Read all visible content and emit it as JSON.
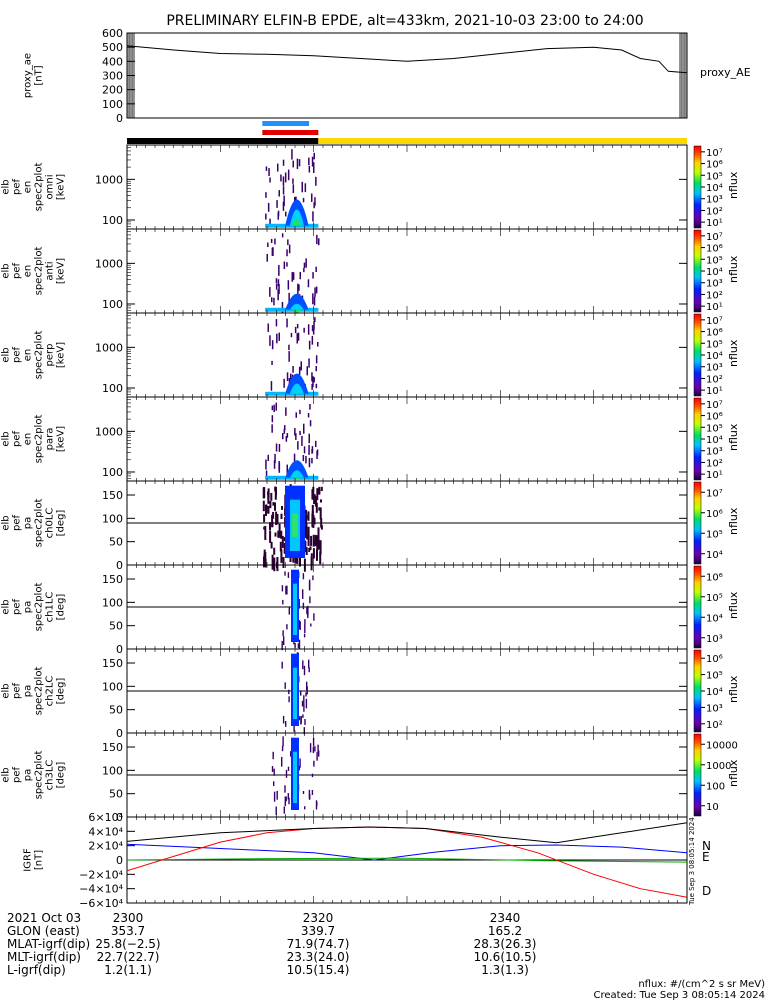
{
  "title": "PRELIMINARY ELFIN-B EPDE, alt=433km, 2021-10-03 23:00 to 24:00",
  "colors": {
    "ae_line": "#000000",
    "bar_blue": "#1e90ff",
    "bar_red": "#e00000",
    "bar_black": "#000000",
    "bar_yellow": "#ffd700",
    "grf_n": "#0000ff",
    "grf_e": "#00b000",
    "grf_d": "#ff0000",
    "grf_total": "#000000",
    "spec_fill": "#1e3cff"
  },
  "chart_data": [
    {
      "id": "proxy_ae",
      "type": "line",
      "ylabel_lines": [
        "proxy_ae",
        "[nT]"
      ],
      "legend": "proxy_AE",
      "ylim": [
        0,
        600
      ],
      "yticks": [
        "0",
        "100",
        "200",
        "300",
        "400",
        "500",
        "600"
      ],
      "x": [
        0,
        5,
        10,
        15,
        20,
        25,
        30,
        35,
        40,
        45,
        50,
        53,
        55,
        57,
        58,
        60
      ],
      "values": [
        510,
        480,
        455,
        450,
        440,
        420,
        400,
        420,
        455,
        490,
        500,
        480,
        420,
        400,
        330,
        320
      ]
    },
    {
      "id": "science_bars",
      "type": "bar",
      "segments": [
        {
          "color": "black",
          "x0": 0,
          "x1": 20.5
        },
        {
          "color": "yellow",
          "x0": 20.5,
          "x1": 60
        }
      ],
      "zones": [
        {
          "color": "blue",
          "x0": 14.5,
          "x1": 19.5
        },
        {
          "color": "red",
          "x0": 14.5,
          "x1": 20.5
        }
      ]
    },
    {
      "id": "omni",
      "type": "heatmap",
      "ylabel_lines": [
        "elb",
        "pef",
        "en",
        "spec2plot",
        "omni",
        "[keV]"
      ],
      "yscale": "log",
      "ylim": [
        60,
        7000
      ],
      "yticks": [
        "100",
        "1000"
      ],
      "cbar_label": "nflux",
      "cbar_ticks": [
        "10¹",
        "10²",
        "10³",
        "10⁴",
        "10⁵",
        "10⁶",
        "10⁷"
      ],
      "activity": {
        "x0": 14.8,
        "x1": 20.5,
        "peak_x": 18.2,
        "peak_value_keV": 800
      }
    },
    {
      "id": "anti",
      "type": "heatmap",
      "ylabel_lines": [
        "elb",
        "pef",
        "en",
        "spec2plot",
        "anti",
        "[keV]"
      ],
      "yscale": "log",
      "ylim": [
        60,
        7000
      ],
      "yticks": [
        "100",
        "1000"
      ],
      "cbar_label": "nflux",
      "cbar_ticks": [
        "10¹",
        "10²",
        "10³",
        "10⁴",
        "10⁵",
        "10⁶",
        "10⁷"
      ],
      "activity": {
        "x0": 14.8,
        "x1": 20.5,
        "peak_x": 18.2,
        "peak_value_keV": 250
      }
    },
    {
      "id": "perp",
      "type": "heatmap",
      "ylabel_lines": [
        "elb",
        "pef",
        "en",
        "spec2plot",
        "perp",
        "[keV]"
      ],
      "yscale": "log",
      "ylim": [
        60,
        7000
      ],
      "yticks": [
        "100",
        "1000"
      ],
      "cbar_label": "nflux",
      "cbar_ticks": [
        "10¹",
        "10²",
        "10³",
        "10⁴",
        "10⁵",
        "10⁶",
        "10⁷"
      ],
      "activity": {
        "x0": 14.8,
        "x1": 20.5,
        "peak_x": 18.2,
        "peak_value_keV": 400
      }
    },
    {
      "id": "para",
      "type": "heatmap",
      "ylabel_lines": [
        "elb",
        "pef",
        "en",
        "spec2plot",
        "para",
        "[keV]"
      ],
      "yscale": "log",
      "ylim": [
        60,
        7000
      ],
      "yticks": [
        "100",
        "1000"
      ],
      "cbar_label": "nflux",
      "cbar_ticks": [
        "10¹",
        "10²",
        "10³",
        "10⁴",
        "10⁵",
        "10⁶",
        "10⁷"
      ],
      "activity": {
        "x0": 14.8,
        "x1": 20.5,
        "peak_x": 18.2,
        "peak_value_keV": 300
      }
    },
    {
      "id": "ch0LC",
      "type": "heatmap",
      "ylabel_lines": [
        "elb",
        "pef",
        "pa",
        "spec2plot",
        "ch0LC",
        "[deg]"
      ],
      "yscale": "linear",
      "ylim": [
        0,
        180
      ],
      "yticks": [
        "0",
        "50",
        "100",
        "150"
      ],
      "ref_line": 90,
      "cbar_label": "nflux",
      "cbar_ticks": [
        "10⁴",
        "10⁵",
        "10⁶",
        "10⁷"
      ],
      "activity": {
        "x0": 14.5,
        "x1": 20.8,
        "peak_x": 18.0,
        "peak_value_deg": 90
      }
    },
    {
      "id": "ch1LC",
      "type": "heatmap",
      "ylabel_lines": [
        "elb",
        "pef",
        "pa",
        "spec2plot",
        "ch1LC",
        "[deg]"
      ],
      "yscale": "linear",
      "ylim": [
        0,
        180
      ],
      "yticks": [
        "0",
        "50",
        "100",
        "150"
      ],
      "ref_line": 90,
      "cbar_label": "nflux",
      "cbar_ticks": [
        "10³",
        "10⁴",
        "10⁵",
        "10⁶"
      ],
      "activity": {
        "x0": 16.5,
        "x1": 20.0,
        "peak_x": 18.0,
        "peak_value_deg": 90
      }
    },
    {
      "id": "ch2LC",
      "type": "heatmap",
      "ylabel_lines": [
        "elb",
        "pef",
        "pa",
        "spec2plot",
        "ch2LC",
        "[deg]"
      ],
      "yscale": "linear",
      "ylim": [
        0,
        180
      ],
      "yticks": [
        "0",
        "50",
        "100",
        "150"
      ],
      "ref_line": 90,
      "cbar_label": "nflux",
      "cbar_ticks": [
        "10²",
        "10³",
        "10⁴",
        "10⁵",
        "10⁶"
      ],
      "activity": {
        "x0": 16.5,
        "x1": 19.5,
        "peak_x": 18.0,
        "peak_value_deg": 90
      }
    },
    {
      "id": "ch3LC",
      "type": "heatmap",
      "ylabel_lines": [
        "elb",
        "pef",
        "pa",
        "spec2plot",
        "ch3LC",
        "[deg]"
      ],
      "yscale": "linear",
      "ylim": [
        0,
        180
      ],
      "yticks": [
        "0",
        "50",
        "100",
        "150"
      ],
      "ref_line": 90,
      "cbar_label": "nflux",
      "cbar_ticks": [
        "10",
        "100",
        "1000",
        "10000"
      ],
      "activity": {
        "x0": 15.5,
        "x1": 20.5,
        "peak_x": 18.0,
        "peak_value_deg": 90
      }
    },
    {
      "id": "igrf",
      "type": "line",
      "ylabel_lines": [
        "IGRF",
        "[nT]"
      ],
      "ylim": [
        -60000,
        60000
      ],
      "yticks": [
        "−6×10⁴",
        "−4×10⁴",
        "−2×10⁴",
        "0",
        "2×10⁴",
        "4×10⁴",
        "6×10⁴"
      ],
      "series": [
        {
          "name": "N",
          "color": "blue",
          "x": [
            0,
            10,
            20,
            26.5,
            33,
            40,
            46,
            53,
            60
          ],
          "values": [
            22000,
            16000,
            10000,
            0,
            11000,
            20000,
            21000,
            18000,
            10000
          ]
        },
        {
          "name": "E",
          "color": "green",
          "x": [
            0,
            15,
            30,
            45,
            60
          ],
          "values": [
            0,
            2000,
            2500,
            -1000,
            -3000
          ]
        },
        {
          "name": "D",
          "color": "red",
          "x": [
            0,
            5,
            10,
            15,
            20,
            26,
            32,
            38,
            44,
            50,
            55,
            60
          ],
          "values": [
            -15000,
            5000,
            25000,
            38000,
            44000,
            46000,
            44000,
            32000,
            10000,
            -20000,
            -40000,
            -52000
          ]
        },
        {
          "name": "",
          "color": "black",
          "x": [
            0,
            10,
            20,
            26,
            32,
            40,
            46,
            53,
            60
          ],
          "values": [
            26000,
            38000,
            44000,
            46000,
            44000,
            32000,
            24000,
            38000,
            52000
          ]
        }
      ]
    }
  ],
  "xticks": [
    {
      "x": 0,
      "label": "2300"
    },
    {
      "x": 20,
      "label": "2320"
    },
    {
      "x": 40,
      "label": "2340"
    }
  ],
  "ephemeris": [
    {
      "label": "2021 Oct 03",
      "values": [
        "2300",
        "2320",
        "2340"
      ]
    },
    {
      "label": "GLON (east)",
      "values": [
        "353.7",
        "339.7",
        "165.2"
      ]
    },
    {
      "label": "MLAT-igrf(dip)",
      "values": [
        "25.8(−2.5)",
        "71.9(74.7)",
        "28.3(26.3)"
      ]
    },
    {
      "label": "MLT-igrf(dip)",
      "values": [
        "22.7(22.7)",
        "23.3(24.0)",
        "10.6(10.5)"
      ]
    },
    {
      "label": "L-igrf(dip)",
      "values": [
        "1.2(1.1)",
        "10.5(15.4)",
        "1.3(1.3)"
      ]
    }
  ],
  "footer": {
    "units": "nflux: #/(cm^2 s sr MeV)",
    "created": "Created: Tue Sep  3 08:05:14 2024",
    "side_stamp": "Tue Sep  3 08:05:14 2024"
  }
}
